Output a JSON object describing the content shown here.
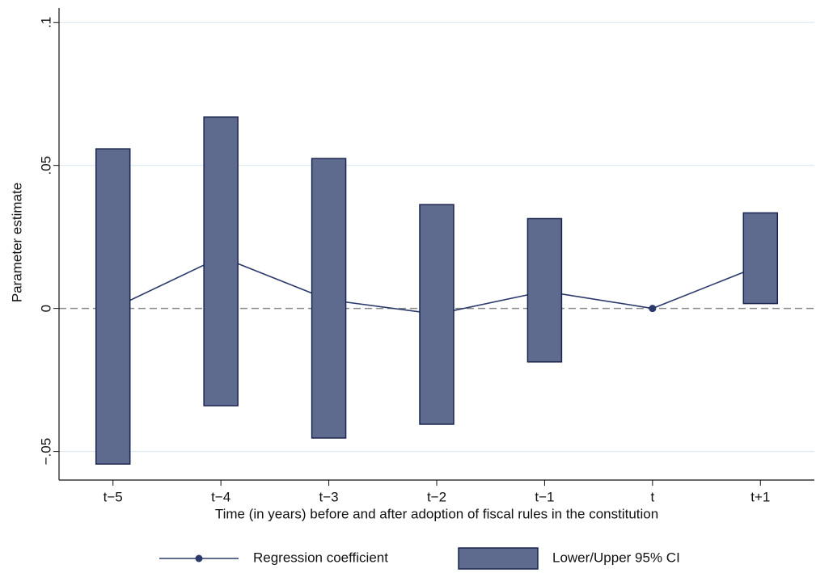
{
  "chart_data": {
    "type": "rangebar",
    "xlabel": "Time (in years) before and after adoption of fiscal rules in the constitution",
    "ylabel": "Parameter estimate",
    "categories": [
      "t−5",
      "t−4",
      "t−3",
      "t−2",
      "t−1",
      "t",
      "t+1"
    ],
    "series": [
      {
        "name": "Regression coefficient",
        "type": "line",
        "color": "#2b3a6b",
        "values": [
          0.0,
          0.018,
          0.003,
          -0.002,
          0.006,
          0.0,
          0.015
        ]
      },
      {
        "name": "Lower/Upper 95% CI",
        "type": "rangebar",
        "color": "#5f6a8f",
        "low": [
          -0.0544,
          -0.034,
          -0.0453,
          -0.0405,
          -0.0187,
          null,
          0.0017
        ],
        "high": [
          0.0558,
          0.0669,
          0.0524,
          0.0363,
          0.0314,
          null,
          0.0334
        ]
      }
    ],
    "ylim": [
      -0.06,
      0.105
    ],
    "yticks": [
      {
        "value": -0.05,
        "label": "−.05"
      },
      0,
      {
        "value": 0.05,
        "label": ".05"
      },
      {
        "value": 0.1,
        "label": ".1"
      }
    ],
    "grid": true,
    "legend": "bottom"
  }
}
